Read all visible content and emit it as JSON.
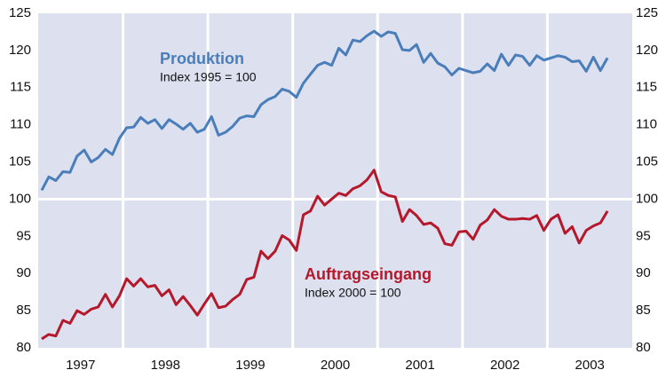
{
  "chart_data": {
    "type": "line",
    "x": [
      1997.042,
      1997.125,
      1997.208,
      1997.292,
      1997.375,
      1997.458,
      1997.542,
      1997.625,
      1997.708,
      1997.792,
      1997.875,
      1997.958,
      1998.042,
      1998.125,
      1998.208,
      1998.292,
      1998.375,
      1998.458,
      1998.542,
      1998.625,
      1998.708,
      1998.792,
      1998.875,
      1998.958,
      1999.042,
      1999.125,
      1999.208,
      1999.292,
      1999.375,
      1999.458,
      1999.542,
      1999.625,
      1999.708,
      1999.792,
      1999.875,
      1999.958,
      2000.042,
      2000.125,
      2000.208,
      2000.292,
      2000.375,
      2000.458,
      2000.542,
      2000.625,
      2000.708,
      2000.792,
      2000.875,
      2000.958,
      2001.042,
      2001.125,
      2001.208,
      2001.292,
      2001.375,
      2001.458,
      2001.542,
      2001.625,
      2001.708,
      2001.792,
      2001.875,
      2001.958,
      2002.042,
      2002.125,
      2002.208,
      2002.292,
      2002.375,
      2002.458,
      2002.542,
      2002.625,
      2002.708,
      2002.792,
      2002.875,
      2002.958,
      2003.042,
      2003.125,
      2003.208,
      2003.292,
      2003.375,
      2003.458,
      2003.542,
      2003.625,
      2003.708
    ],
    "series": [
      {
        "name": "Produktion",
        "index_note": "Index 1995 = 100",
        "color": "#4a7ebb",
        "values": [
          101.2,
          103,
          102.5,
          103.7,
          103.6,
          105.8,
          106.6,
          105,
          105.6,
          106.7,
          106,
          108.2,
          109.6,
          109.7,
          111,
          110.2,
          110.7,
          109.5,
          110.7,
          110.1,
          109.4,
          110.2,
          109,
          109.4,
          111.1,
          108.6,
          109,
          109.8,
          110.9,
          111.2,
          111.1,
          112.7,
          113.4,
          113.8,
          114.8,
          114.5,
          113.7,
          115.6,
          116.8,
          118,
          118.4,
          118,
          120.3,
          119.4,
          121.4,
          121.2,
          122,
          122.6,
          121.9,
          122.5,
          122.3,
          120.1,
          120,
          120.8,
          118.4,
          119.6,
          118.3,
          117.8,
          116.7,
          117.6,
          117.3,
          117,
          117.2,
          118.2,
          117.3,
          119.5,
          118,
          119.4,
          119.2,
          118,
          119.3,
          118.7,
          119,
          119.3,
          119.1,
          118.5,
          118.6,
          117.2,
          119.1,
          117.3,
          119
        ]
      },
      {
        "name": "Auftragseingang",
        "index_note": "Index 2000 = 100",
        "color": "#b5182b",
        "values": [
          81.2,
          81.8,
          81.6,
          83.7,
          83.3,
          85,
          84.5,
          85.2,
          85.5,
          87.2,
          85.5,
          87,
          89.3,
          88.3,
          89.3,
          88.2,
          88.4,
          87,
          87.8,
          85.8,
          86.9,
          85.7,
          84.4,
          85.9,
          87.3,
          85.4,
          85.6,
          86.5,
          87.2,
          89.2,
          89.5,
          93,
          92,
          93,
          95.1,
          94.5,
          93.1,
          97.9,
          98.4,
          100.4,
          99.2,
          100,
          100.8,
          100.5,
          101.4,
          101.8,
          102.6,
          103.9,
          101,
          100.5,
          100.3,
          97,
          98.6,
          97.8,
          96.6,
          96.8,
          96.1,
          94,
          93.8,
          95.6,
          95.7,
          94.6,
          96.5,
          97.2,
          98.6,
          97.7,
          97.3,
          97.3,
          97.4,
          97.3,
          97.8,
          95.8,
          97.3,
          97.9,
          95.4,
          96.3,
          94.1,
          95.8,
          96.4,
          96.8,
          98.4
        ]
      }
    ],
    "xlim": [
      1997,
      2004
    ],
    "xticks": [
      {
        "value": 1997.5,
        "label": "1997"
      },
      {
        "value": 1998.5,
        "label": "1998"
      },
      {
        "value": 1999.5,
        "label": "1999"
      },
      {
        "value": 2000.5,
        "label": "2000"
      },
      {
        "value": 2001.5,
        "label": "2001"
      },
      {
        "value": 2002.5,
        "label": "2002"
      },
      {
        "value": 2003.5,
        "label": "2003"
      }
    ],
    "xgrid_lines": [
      1998,
      1999,
      2000,
      2001,
      2002,
      2003
    ],
    "reference_lines": [
      100
    ],
    "ylim": [
      80,
      125
    ],
    "yticks": [
      80,
      85,
      90,
      95,
      100,
      105,
      110,
      115,
      120,
      125
    ],
    "y2lim": [
      80,
      125
    ],
    "y2ticks": [
      80,
      85,
      90,
      95,
      100,
      105,
      110,
      115,
      120,
      125
    ],
    "background": "#dde1ef"
  }
}
